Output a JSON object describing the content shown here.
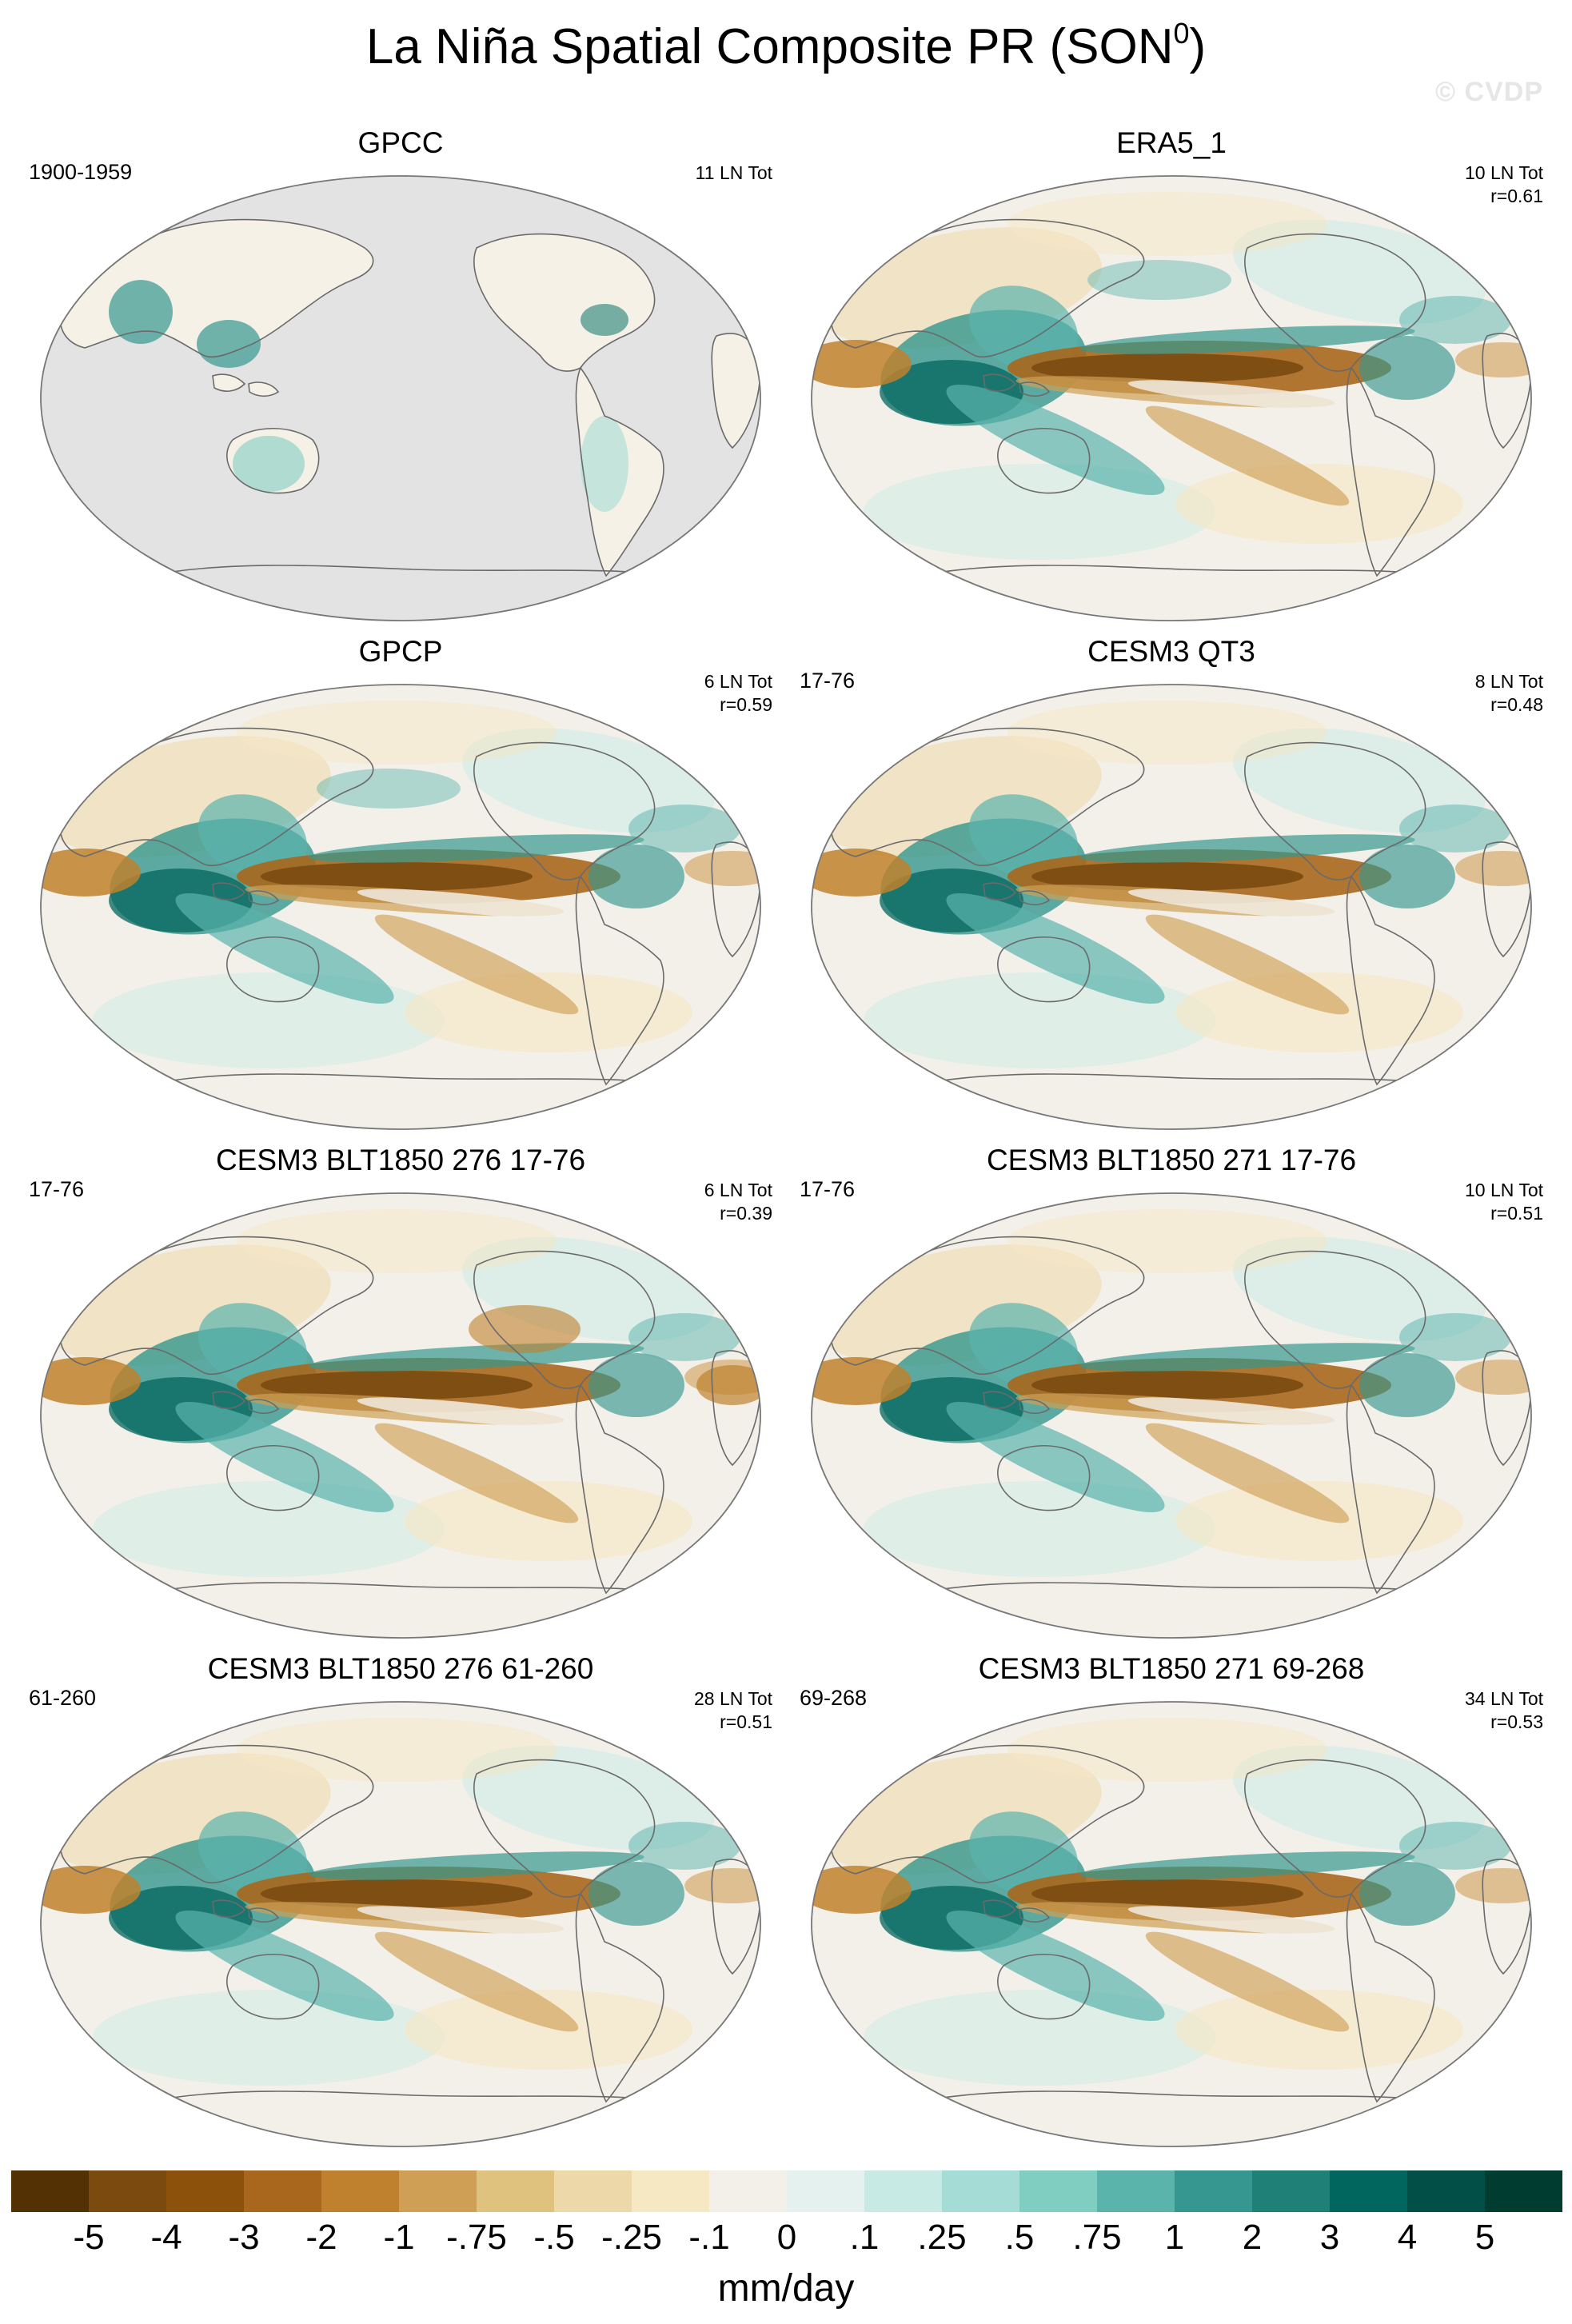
{
  "title": "La Niña Spatial Composite PR (SON",
  "title_sup": "0",
  "title_close": ")",
  "watermark": "© CVDP",
  "panels": [
    {
      "title": "GPCC",
      "period": "1900-1959",
      "count": "11 LN Tot",
      "r": "",
      "variant": "gpcc"
    },
    {
      "title": "ERA5_1",
      "period": "",
      "count": "10 LN Tot",
      "r": "r=0.61",
      "variant": "era5"
    },
    {
      "title": "GPCP",
      "period": "",
      "count": "6 LN Tot",
      "r": "r=0.59",
      "variant": "gpcp"
    },
    {
      "title": "CESM3 QT3",
      "period": "17-76",
      "count": "8 LN Tot",
      "r": "r=0.48",
      "variant": "qt3"
    },
    {
      "title": "CESM3 BLT1850 276 17-76",
      "period": "17-76",
      "count": "6 LN Tot",
      "r": "r=0.39",
      "variant": "blt276a"
    },
    {
      "title": "CESM3 BLT1850 271 17-76",
      "period": "17-76",
      "count": "10 LN Tot",
      "r": "r=0.51",
      "variant": "blt271a"
    },
    {
      "title": "CESM3 BLT1850 276 61-260",
      "period": "61-260",
      "count": "28 LN Tot",
      "r": "r=0.51",
      "variant": "blt276b"
    },
    {
      "title": "CESM3 BLT1850 271 69-268",
      "period": "69-268",
      "count": "34 LN Tot",
      "r": "r=0.53",
      "variant": "blt271b"
    }
  ],
  "colorbar": {
    "units": "mm/day",
    "ticks": [
      "-5",
      "-4",
      "-3",
      "-2",
      "-1",
      "-.75",
      "-.5",
      "-.25",
      "-.1",
      "0",
      ".1",
      ".25",
      ".5",
      ".75",
      "1",
      "2",
      "3",
      "4",
      "5"
    ],
    "colors": [
      "#543005",
      "#7a4a0f",
      "#8c510a",
      "#a8671c",
      "#bf812d",
      "#cf9f55",
      "#dfc27d",
      "#ecd8a8",
      "#f6e8c3",
      "#f3f0ea",
      "#e4f1ee",
      "#c7eae5",
      "#a5ddd6",
      "#80cdc1",
      "#5ab4ac",
      "#35978f",
      "#1f8077",
      "#01665e",
      "#014f47",
      "#003c30"
    ]
  },
  "ocean_mask_color": "#e3e3e3"
}
